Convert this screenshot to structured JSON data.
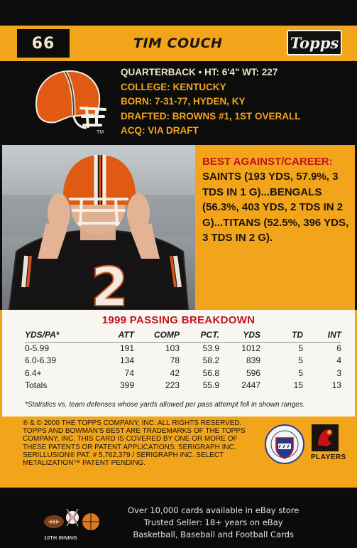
{
  "card": {
    "number": "66",
    "player_name": "TIM COUCH",
    "brand_logo": "Topps",
    "bio": {
      "position_line": "QUARTERBACK • HT: 6'4\"  WT: 227",
      "college": "COLLEGE: KENTUCKY",
      "born": "BORN: 7-31-77, HYDEN, KY",
      "drafted": "DRAFTED: BROWNS #1, 1ST OVERALL",
      "acq": "ACQ: VIA DRAFT"
    },
    "helmet_tm": "TM",
    "jersey_text": "2",
    "best_against": {
      "title": "BEST AGAINST/CAREER:",
      "text": "SAINTS (193 YDS, 57.9%, 3 TDS IN 1 G)...BENGALS (56.3%, 403 YDS, 2 TDS IN 2 G)...TITANS (52.5%, 396 YDS, 3 TDS IN 2 G)."
    },
    "stats": {
      "title": "1999 PASSING BREAKDOWN",
      "headers": [
        "YDS/PA*",
        "ATT",
        "COMP",
        "PCT.",
        "YDS",
        "TD",
        "INT"
      ],
      "rows": [
        [
          "0-5.99",
          "191",
          "103",
          "53.9",
          "1012",
          "5",
          "6"
        ],
        [
          "6.0-6.39",
          "134",
          "78",
          "58.2",
          "839",
          "5",
          "4"
        ],
        [
          "6.4+",
          "74",
          "42",
          "56.8",
          "596",
          "5",
          "3"
        ],
        [
          "Totals",
          "399",
          "223",
          "55.9",
          "2447",
          "15",
          "13"
        ]
      ],
      "footnote": "*Statistics vs. team defenses whose yards allowed per pass attempt fell in shown ranges."
    },
    "legal": "® & © 2000 THE TOPPS COMPANY, INC. ALL RIGHTS RESERVED. TOPPS AND BOWMAN'S BEST ARE TRADEMARKS OF THE TOPPS COMPANY, INC. THIS CARD IS COVERED BY ONE OR MORE OF THESE PATENTS OR PATENT APPLICATIONS: SERIGRAPH INC. SERILLUSION® PAT. # 5,762,379 / SERIGRAPH INC. SELECT METALIZATION™ PATENT PENDING.",
    "players_label": "PLAYERS"
  },
  "footer": {
    "brand": "10TH INNING",
    "lines": [
      "Over 10,000 cards available in eBay store",
      "Trusted Seller: 18+ years on eBay",
      "Basketball, Baseball and Football Cards"
    ]
  },
  "colors": {
    "accent": "#f2a51a",
    "red": "#c0131a",
    "background": "#0c0c0c"
  }
}
